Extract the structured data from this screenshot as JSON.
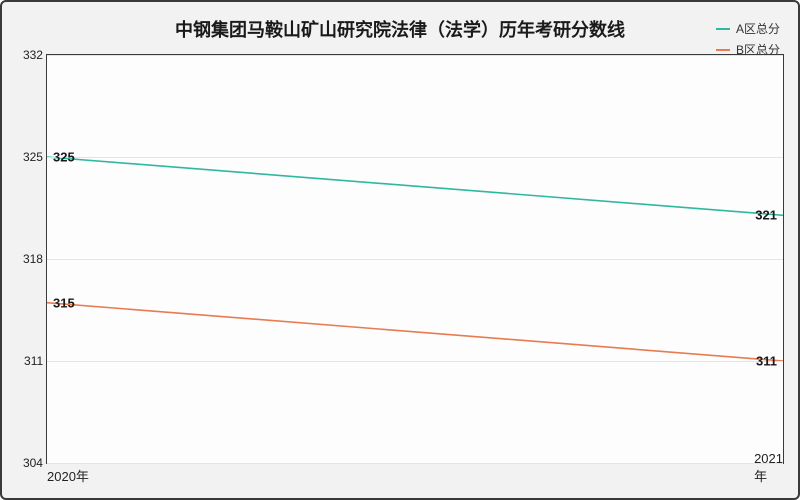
{
  "chart": {
    "type": "line",
    "title": "中钢集团马鞍山矿山研究院法律（法学）历年考研分数线",
    "title_fontsize": 18,
    "background_color": "#f2f2f2",
    "plot_background": "#fdfdfd",
    "border_color": "#3a3a3a",
    "grid_color": "#e4e4e4",
    "x": {
      "categories": [
        "2020年",
        "2021年"
      ]
    },
    "y": {
      "min": 304,
      "max": 332,
      "ticks": [
        304,
        311,
        318,
        325,
        332
      ]
    },
    "series": [
      {
        "name": "A区总分",
        "color": "#2fb8a0",
        "values": [
          325,
          321
        ],
        "line_width": 1.6
      },
      {
        "name": "B区总分",
        "color": "#e87b52",
        "values": [
          315,
          311
        ],
        "line_width": 1.6
      }
    ],
    "point_labels": [
      {
        "text": "325",
        "side": "left",
        "y": 325
      },
      {
        "text": "321",
        "side": "right",
        "y": 321
      },
      {
        "text": "315",
        "side": "left",
        "y": 315
      },
      {
        "text": "311",
        "side": "right",
        "y": 311
      }
    ]
  }
}
